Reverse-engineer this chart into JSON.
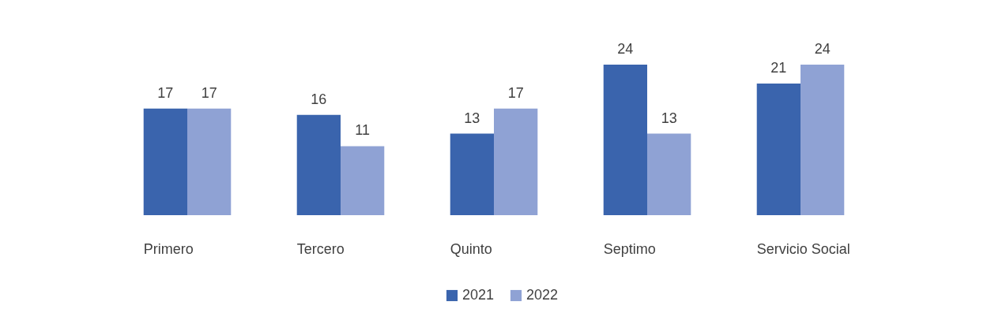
{
  "chart_data": {
    "type": "bar",
    "categories": [
      "Primero",
      "Tercero",
      "Quinto",
      "Septimo",
      "Servicio Social"
    ],
    "series": [
      {
        "name": "2021",
        "color": "#3a64ad",
        "values": [
          17,
          16,
          13,
          24,
          21
        ]
      },
      {
        "name": "2022",
        "color": "#8fa2d4",
        "values": [
          17,
          11,
          17,
          13,
          24
        ]
      }
    ],
    "data_labels": true,
    "legend": "bottom",
    "tick_labels": "x"
  }
}
